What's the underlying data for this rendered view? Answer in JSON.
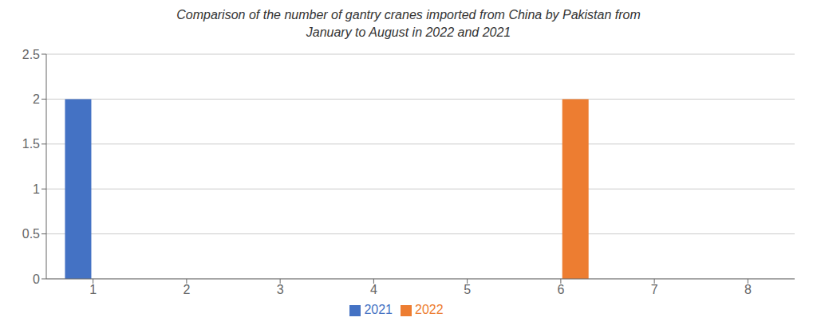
{
  "chart_data": {
    "type": "bar",
    "title": "Comparison of the number of gantry cranes imported from China by Pakistan from\nJanuary to August in 2022 and 2021",
    "categories": [
      "1",
      "2",
      "3",
      "4",
      "5",
      "6",
      "7",
      "8"
    ],
    "series": [
      {
        "name": "2021",
        "color": "#4472C4",
        "values": [
          2,
          null,
          null,
          null,
          null,
          null,
          null,
          null
        ]
      },
      {
        "name": "2022",
        "color": "#ED7D31",
        "values": [
          null,
          null,
          null,
          null,
          null,
          2,
          null,
          null
        ]
      }
    ],
    "ylim": [
      0,
      2.5
    ],
    "yticks": [
      0,
      0.5,
      1,
      1.5,
      2,
      2.5
    ],
    "grid": true,
    "legend": "bottom"
  }
}
